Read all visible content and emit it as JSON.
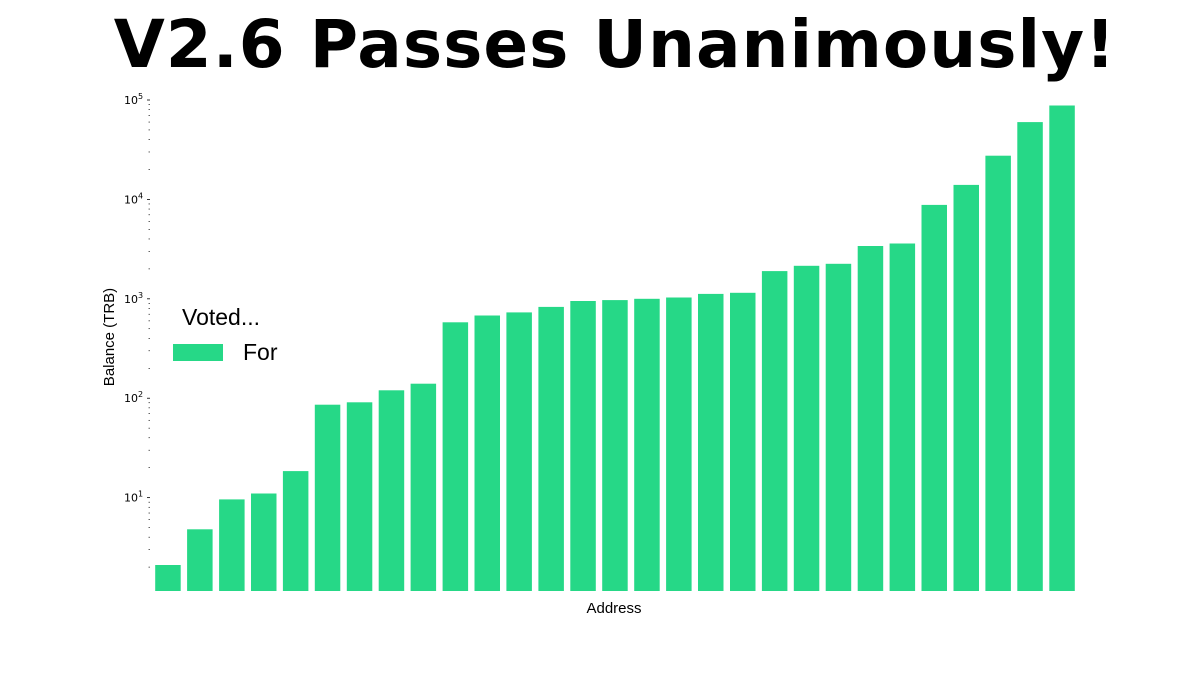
{
  "chart_data": {
    "type": "bar",
    "title": "V2.6 Passes Unanimously!",
    "xlabel": "Address",
    "ylabel": "Balance (TRB)",
    "yscale": "log",
    "ylim": [
      1.15,
      100000
    ],
    "yticks": [
      {
        "value": 10,
        "base": "10",
        "exp": "1"
      },
      {
        "value": 100,
        "base": "10",
        "exp": "2"
      },
      {
        "value": 1000,
        "base": "10",
        "exp": "3"
      },
      {
        "value": 10000,
        "base": "10",
        "exp": "4"
      },
      {
        "value": 100000,
        "base": "10",
        "exp": "5"
      }
    ],
    "grid": false,
    "legend": {
      "title": "Voted...",
      "placement": "center-left",
      "entries": [
        "For"
      ]
    },
    "series": [
      {
        "name": "For",
        "color": "#26d887",
        "values": [
          2.1,
          4.8,
          9.6,
          11,
          18.5,
          86,
          91,
          120,
          140,
          580,
          680,
          730,
          830,
          950,
          970,
          1000,
          1030,
          1120,
          1150,
          1900,
          2150,
          2250,
          3400,
          3600,
          8800,
          14000,
          27500,
          60000,
          88000
        ]
      }
    ]
  }
}
